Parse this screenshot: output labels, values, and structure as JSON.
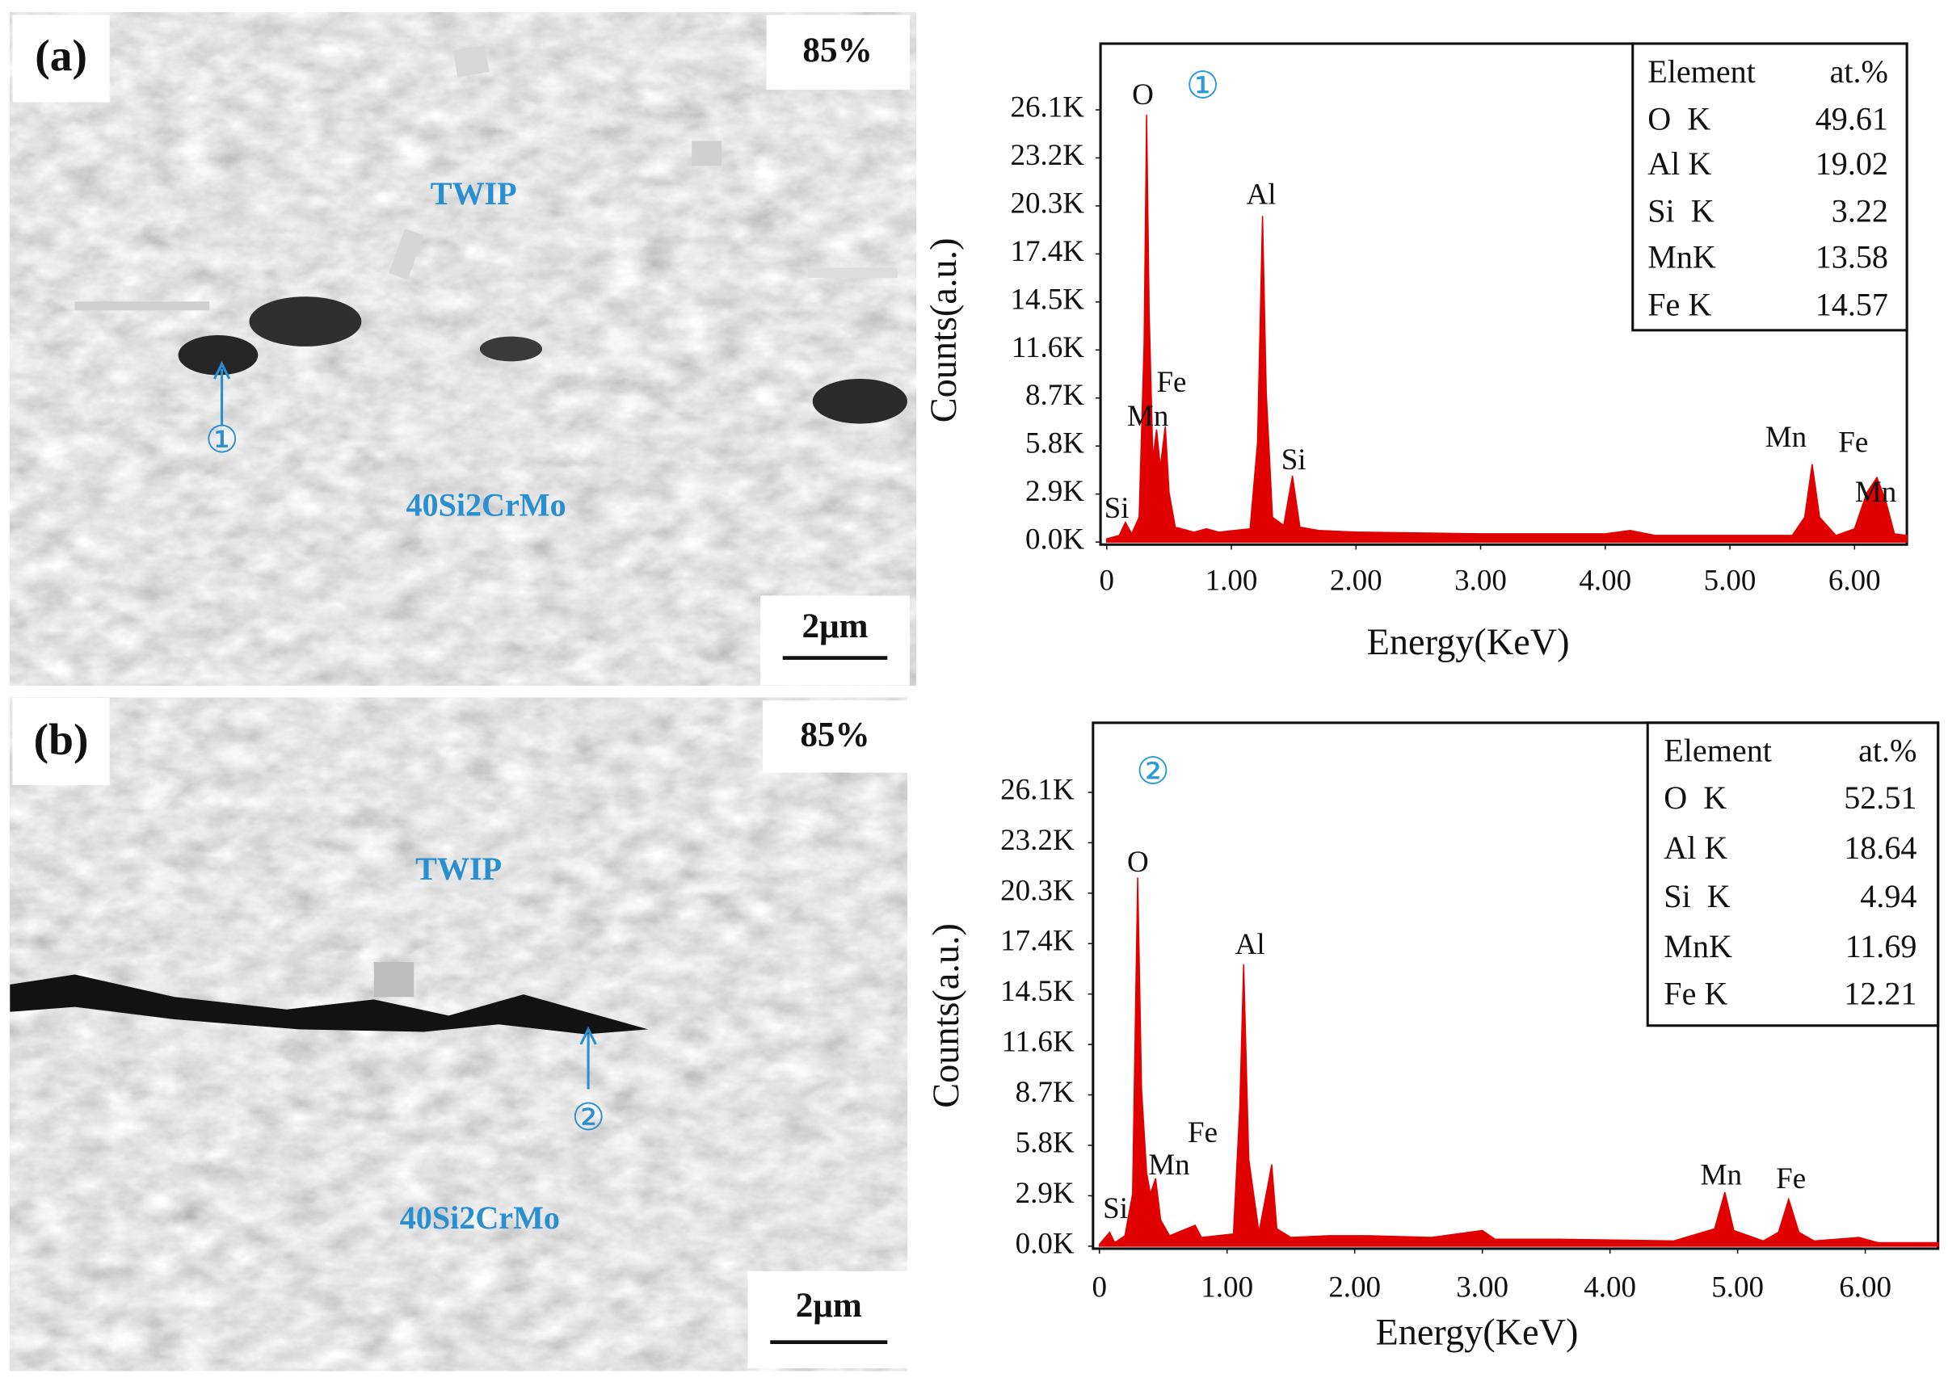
{
  "images": [
    {
      "label": "(a)",
      "reduction": "85%",
      "regions": [
        "TWIP",
        "40Si2CrMo"
      ],
      "marker": "①",
      "scale_bar": "2μm"
    },
    {
      "label": "(b)",
      "reduction": "85%",
      "regions": [
        "TWIP",
        "40Si2CrMo"
      ],
      "marker": "②",
      "scale_bar": "2μm"
    }
  ],
  "chart_data": [
    {
      "type": "area",
      "annotation": "①",
      "x_label": "Energy(KeV)",
      "y_label": "Counts(a.u.)",
      "color": "#e00000",
      "xlim": [
        -0.05,
        6.42
      ],
      "ylim": [
        0,
        30100
      ],
      "xticks": [
        0,
        {
          "value": 1,
          "label": "1.00"
        },
        {
          "value": 2,
          "label": "2.00"
        },
        {
          "value": 3,
          "label": "3.00"
        },
        {
          "value": 4,
          "label": "4.00"
        },
        {
          "value": 5,
          "label": "5.00"
        },
        {
          "value": 6,
          "label": "6.00"
        }
      ],
      "yticks": [
        {
          "value": 0,
          "label": "0.0K"
        },
        {
          "value": 2900,
          "label": "2.9K"
        },
        {
          "value": 5800,
          "label": "5.8K"
        },
        {
          "value": 8700,
          "label": "8.7K"
        },
        {
          "value": 11600,
          "label": "11.6K"
        },
        {
          "value": 14500,
          "label": "14.5K"
        },
        {
          "value": 17400,
          "label": "17.4K"
        },
        {
          "value": 20300,
          "label": "20.3K"
        },
        {
          "value": 23200,
          "label": "23.2K"
        },
        {
          "value": 26100,
          "label": "26.1K"
        }
      ],
      "x": [
        0,
        0.1,
        0.15,
        0.2,
        0.26,
        0.3,
        0.32,
        0.34,
        0.37,
        0.4,
        0.43,
        0.47,
        0.5,
        0.55,
        0.7,
        0.8,
        0.9,
        1.15,
        1.21,
        1.25,
        1.28,
        1.33,
        1.42,
        1.49,
        1.55,
        1.7,
        2.0,
        3.0,
        4.0,
        4.2,
        4.4,
        5.5,
        5.6,
        5.66,
        5.72,
        5.85,
        6.0,
        6.1,
        6.18,
        6.25,
        6.32,
        6.42
      ],
      "values": [
        200,
        400,
        1200,
        500,
        1500,
        12000,
        25800,
        14000,
        5000,
        6800,
        4500,
        7000,
        3000,
        900,
        600,
        800,
        600,
        800,
        6000,
        19700,
        9000,
        1500,
        1000,
        4000,
        900,
        700,
        600,
        500,
        500,
        700,
        400,
        400,
        1500,
        4700,
        1500,
        400,
        800,
        3000,
        3900,
        2500,
        500,
        400
      ],
      "peak_labels": [
        "O",
        "Mn",
        "Fe",
        "Al",
        "Si",
        "Si",
        "Mn",
        "Fe",
        "Mn"
      ],
      "table": {
        "columns": [
          "Element",
          "at.%"
        ],
        "rows": [
          [
            "O  K",
            49.61
          ],
          [
            "Al K",
            19.02
          ],
          [
            "Si  K",
            3.22
          ],
          [
            "MnK",
            13.58
          ],
          [
            "Fe K",
            14.57
          ]
        ]
      }
    },
    {
      "type": "area",
      "annotation": "②",
      "x_label": "Energy(KeV)",
      "y_label": "Counts(a.u.)",
      "color": "#e00000",
      "xlim": [
        -0.05,
        6.57
      ],
      "ylim": [
        0,
        30100
      ],
      "xticks": [
        0,
        {
          "value": 1,
          "label": "1.00"
        },
        {
          "value": 2,
          "label": "2.00"
        },
        {
          "value": 3,
          "label": "3.00"
        },
        {
          "value": 4,
          "label": "4.00"
        },
        {
          "value": 5,
          "label": "5.00"
        },
        {
          "value": 6,
          "label": "6.00"
        }
      ],
      "yticks": [
        {
          "value": 0,
          "label": "0.0K"
        },
        {
          "value": 2900,
          "label": "2.9K"
        },
        {
          "value": 5800,
          "label": "5.8K"
        },
        {
          "value": 8700,
          "label": "8.7K"
        },
        {
          "value": 11600,
          "label": "11.6K"
        },
        {
          "value": 14500,
          "label": "14.5K"
        },
        {
          "value": 17400,
          "label": "17.4K"
        },
        {
          "value": 20300,
          "label": "20.3K"
        },
        {
          "value": 23200,
          "label": "23.2K"
        },
        {
          "value": 26100,
          "label": "26.1K"
        }
      ],
      "x": [
        0,
        0.08,
        0.12,
        0.2,
        0.26,
        0.3,
        0.33,
        0.37,
        0.4,
        0.44,
        0.48,
        0.55,
        0.75,
        0.8,
        1.05,
        1.1,
        1.13,
        1.17,
        1.25,
        1.32,
        1.35,
        1.39,
        1.5,
        1.8,
        2.1,
        2.6,
        3.0,
        3.1,
        3.6,
        4.5,
        4.82,
        4.9,
        4.97,
        5.2,
        5.32,
        5.4,
        5.48,
        5.6,
        5.95,
        6.1,
        6.57
      ],
      "values": [
        100,
        800,
        200,
        600,
        3000,
        21200,
        9000,
        4200,
        3000,
        3900,
        1500,
        600,
        1200,
        500,
        700,
        8000,
        16200,
        5000,
        800,
        3500,
        4700,
        1000,
        500,
        600,
        600,
        500,
        900,
        400,
        400,
        300,
        1000,
        3100,
        900,
        300,
        800,
        2700,
        800,
        300,
        500,
        200,
        200
      ],
      "peak_labels": [
        "O",
        "Fe",
        "Mn",
        "Al",
        "Si",
        "Mn",
        "Fe"
      ],
      "table": {
        "columns": [
          "Element",
          "at.%"
        ],
        "rows": [
          [
            "O  K",
            52.51
          ],
          [
            "Al K",
            18.64
          ],
          [
            "Si  K",
            4.94
          ],
          [
            "MnK",
            11.69
          ],
          [
            "Fe K",
            12.21
          ]
        ]
      }
    }
  ]
}
